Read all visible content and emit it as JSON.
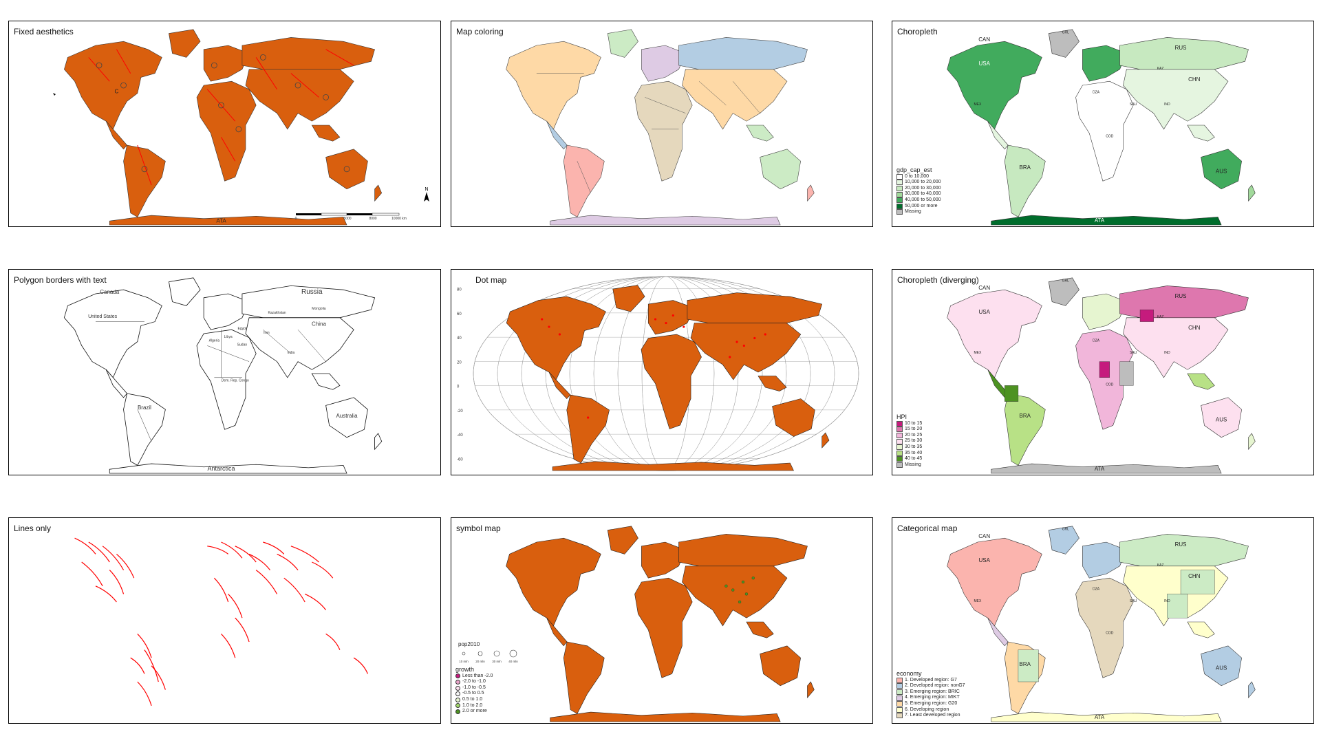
{
  "colors": {
    "orange": "#d95f0e",
    "red": "#ff0000",
    "ata_green": "#006d2c",
    "grey": "#bdbdbd"
  },
  "panels": [
    {
      "id": "fixed",
      "title": "Fixed aesthetics",
      "labels": [
        "C",
        "ATA"
      ],
      "scale_labels": [
        "0",
        "5000",
        "8000",
        "10000 km"
      ],
      "north": "N"
    },
    {
      "id": "coloring",
      "title": "Map coloring"
    },
    {
      "id": "choropleth",
      "title": "Choropleth",
      "labels": [
        "CAN",
        "GRL",
        "USA",
        "RUS",
        "KAZ",
        "CHN",
        "IND",
        "BRA",
        "AUS",
        "ATA",
        "MEX",
        "DZA",
        "SAU",
        "COD"
      ],
      "legend": {
        "title": "gdp_cap_est",
        "items": [
          "0 to 10,000",
          "10,000 to 20,000",
          "20,000 to 30,000",
          "30,000 to 40,000",
          "40,000 to 50,000",
          "50,000 or more",
          "Missing"
        ],
        "colors": [
          "#ffffff",
          "#e5f5e0",
          "#c7e9c0",
          "#a1d99b",
          "#41ab5d",
          "#006d2c",
          "#bdbdbd"
        ]
      }
    },
    {
      "id": "borders_text",
      "title": "Polygon borders with text",
      "labels": [
        "Canada",
        "Russia",
        "United States",
        "China",
        "Brazil",
        "Australia",
        "Antarctica",
        "Algeria",
        "Sudan",
        "India",
        "Dem. Rep. Congo",
        "Kazakhstan",
        "Iran",
        "Libya",
        "Egypt",
        "Mongolia"
      ]
    },
    {
      "id": "dot",
      "title": "Dot map",
      "lat_labels": [
        "80",
        "60",
        "40",
        "20",
        "0",
        "-20",
        "-40",
        "-60"
      ]
    },
    {
      "id": "diverging",
      "title": "Choropleth (diverging)",
      "labels": [
        "CAN",
        "GRL",
        "USA",
        "RUS",
        "KAZ",
        "CHN",
        "IND",
        "BRA",
        "AUS",
        "ATA",
        "MEX",
        "DZA",
        "SAU",
        "COD"
      ],
      "legend": {
        "title": "HPI",
        "items": [
          "10 to 15",
          "15 to 20",
          "20 to 25",
          "25 to 30",
          "30 to 35",
          "35 to 40",
          "40 to 45",
          "Missing"
        ],
        "colors": [
          "#c51b7d",
          "#de77ae",
          "#f1b6da",
          "#fde0ef",
          "#e6f5d0",
          "#b8e186",
          "#4d9221",
          "#bdbdbd"
        ]
      }
    },
    {
      "id": "lines",
      "title": "Lines only"
    },
    {
      "id": "symbol",
      "title": "symbol map",
      "size_legend": {
        "title": "pop2010",
        "items": [
          "10 mln",
          "20 mln",
          "30 mln",
          "40 mln"
        ]
      },
      "legend": {
        "title": "growth",
        "items": [
          "Less than -2.0",
          "-2.0 to -1.0",
          "-1.0 to -0.5",
          "-0.5 to 0.5",
          "0.5 to 1.0",
          "1.0 to 2.0",
          "2.0 or more"
        ],
        "colors": [
          "#c51b7d",
          "#e9a3c9",
          "#fde0ef",
          "#f7f7f7",
          "#e6f5d0",
          "#a1d76a",
          "#4d9221"
        ]
      }
    },
    {
      "id": "categorical",
      "title": "Categorical map",
      "labels": [
        "CAN",
        "GRL",
        "USA",
        "RUS",
        "KAZ",
        "CHN",
        "IND",
        "BRA",
        "AUS",
        "ATA",
        "MEX",
        "DZA",
        "SAU",
        "COD"
      ],
      "legend": {
        "title": "economy",
        "items": [
          "1. Developed region: G7",
          "2. Developed region: nonG7",
          "3. Emerging region: BRIC",
          "4. Emerging region: MIKT",
          "5. Emerging region: G20",
          "6. Developing region",
          "7. Least developed region"
        ],
        "colors": [
          "#fbb4ae",
          "#b3cde3",
          "#ccebc5",
          "#decbe4",
          "#fed9a6",
          "#ffffcc",
          "#e5d8bd"
        ]
      }
    }
  ]
}
